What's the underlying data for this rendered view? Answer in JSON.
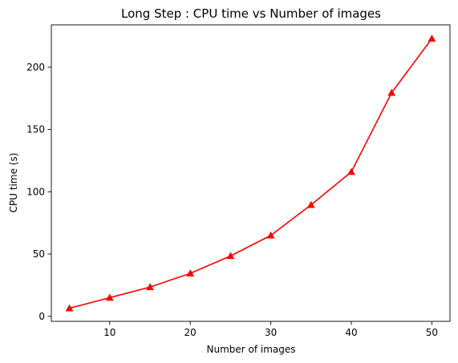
{
  "chart_data": {
    "type": "line",
    "title": "Long Step : CPU time vs Number of images",
    "xlabel": "Number of images",
    "ylabel": "CPU time (s)",
    "xlim": [
      2.75,
      52.25
    ],
    "ylim": [
      -4.0,
      234.0
    ],
    "x_ticks": [
      10,
      20,
      30,
      40,
      50
    ],
    "y_ticks": [
      0,
      50,
      100,
      150,
      200
    ],
    "grid": false,
    "series": [
      {
        "color": "#ff0000",
        "marker": "triangle-up",
        "x": [
          5,
          10,
          15,
          20,
          25,
          30,
          35,
          40,
          45,
          50
        ],
        "y": [
          6.5,
          15,
          23.5,
          34.5,
          48.5,
          65,
          89.5,
          116,
          179.5,
          223
        ]
      }
    ]
  }
}
